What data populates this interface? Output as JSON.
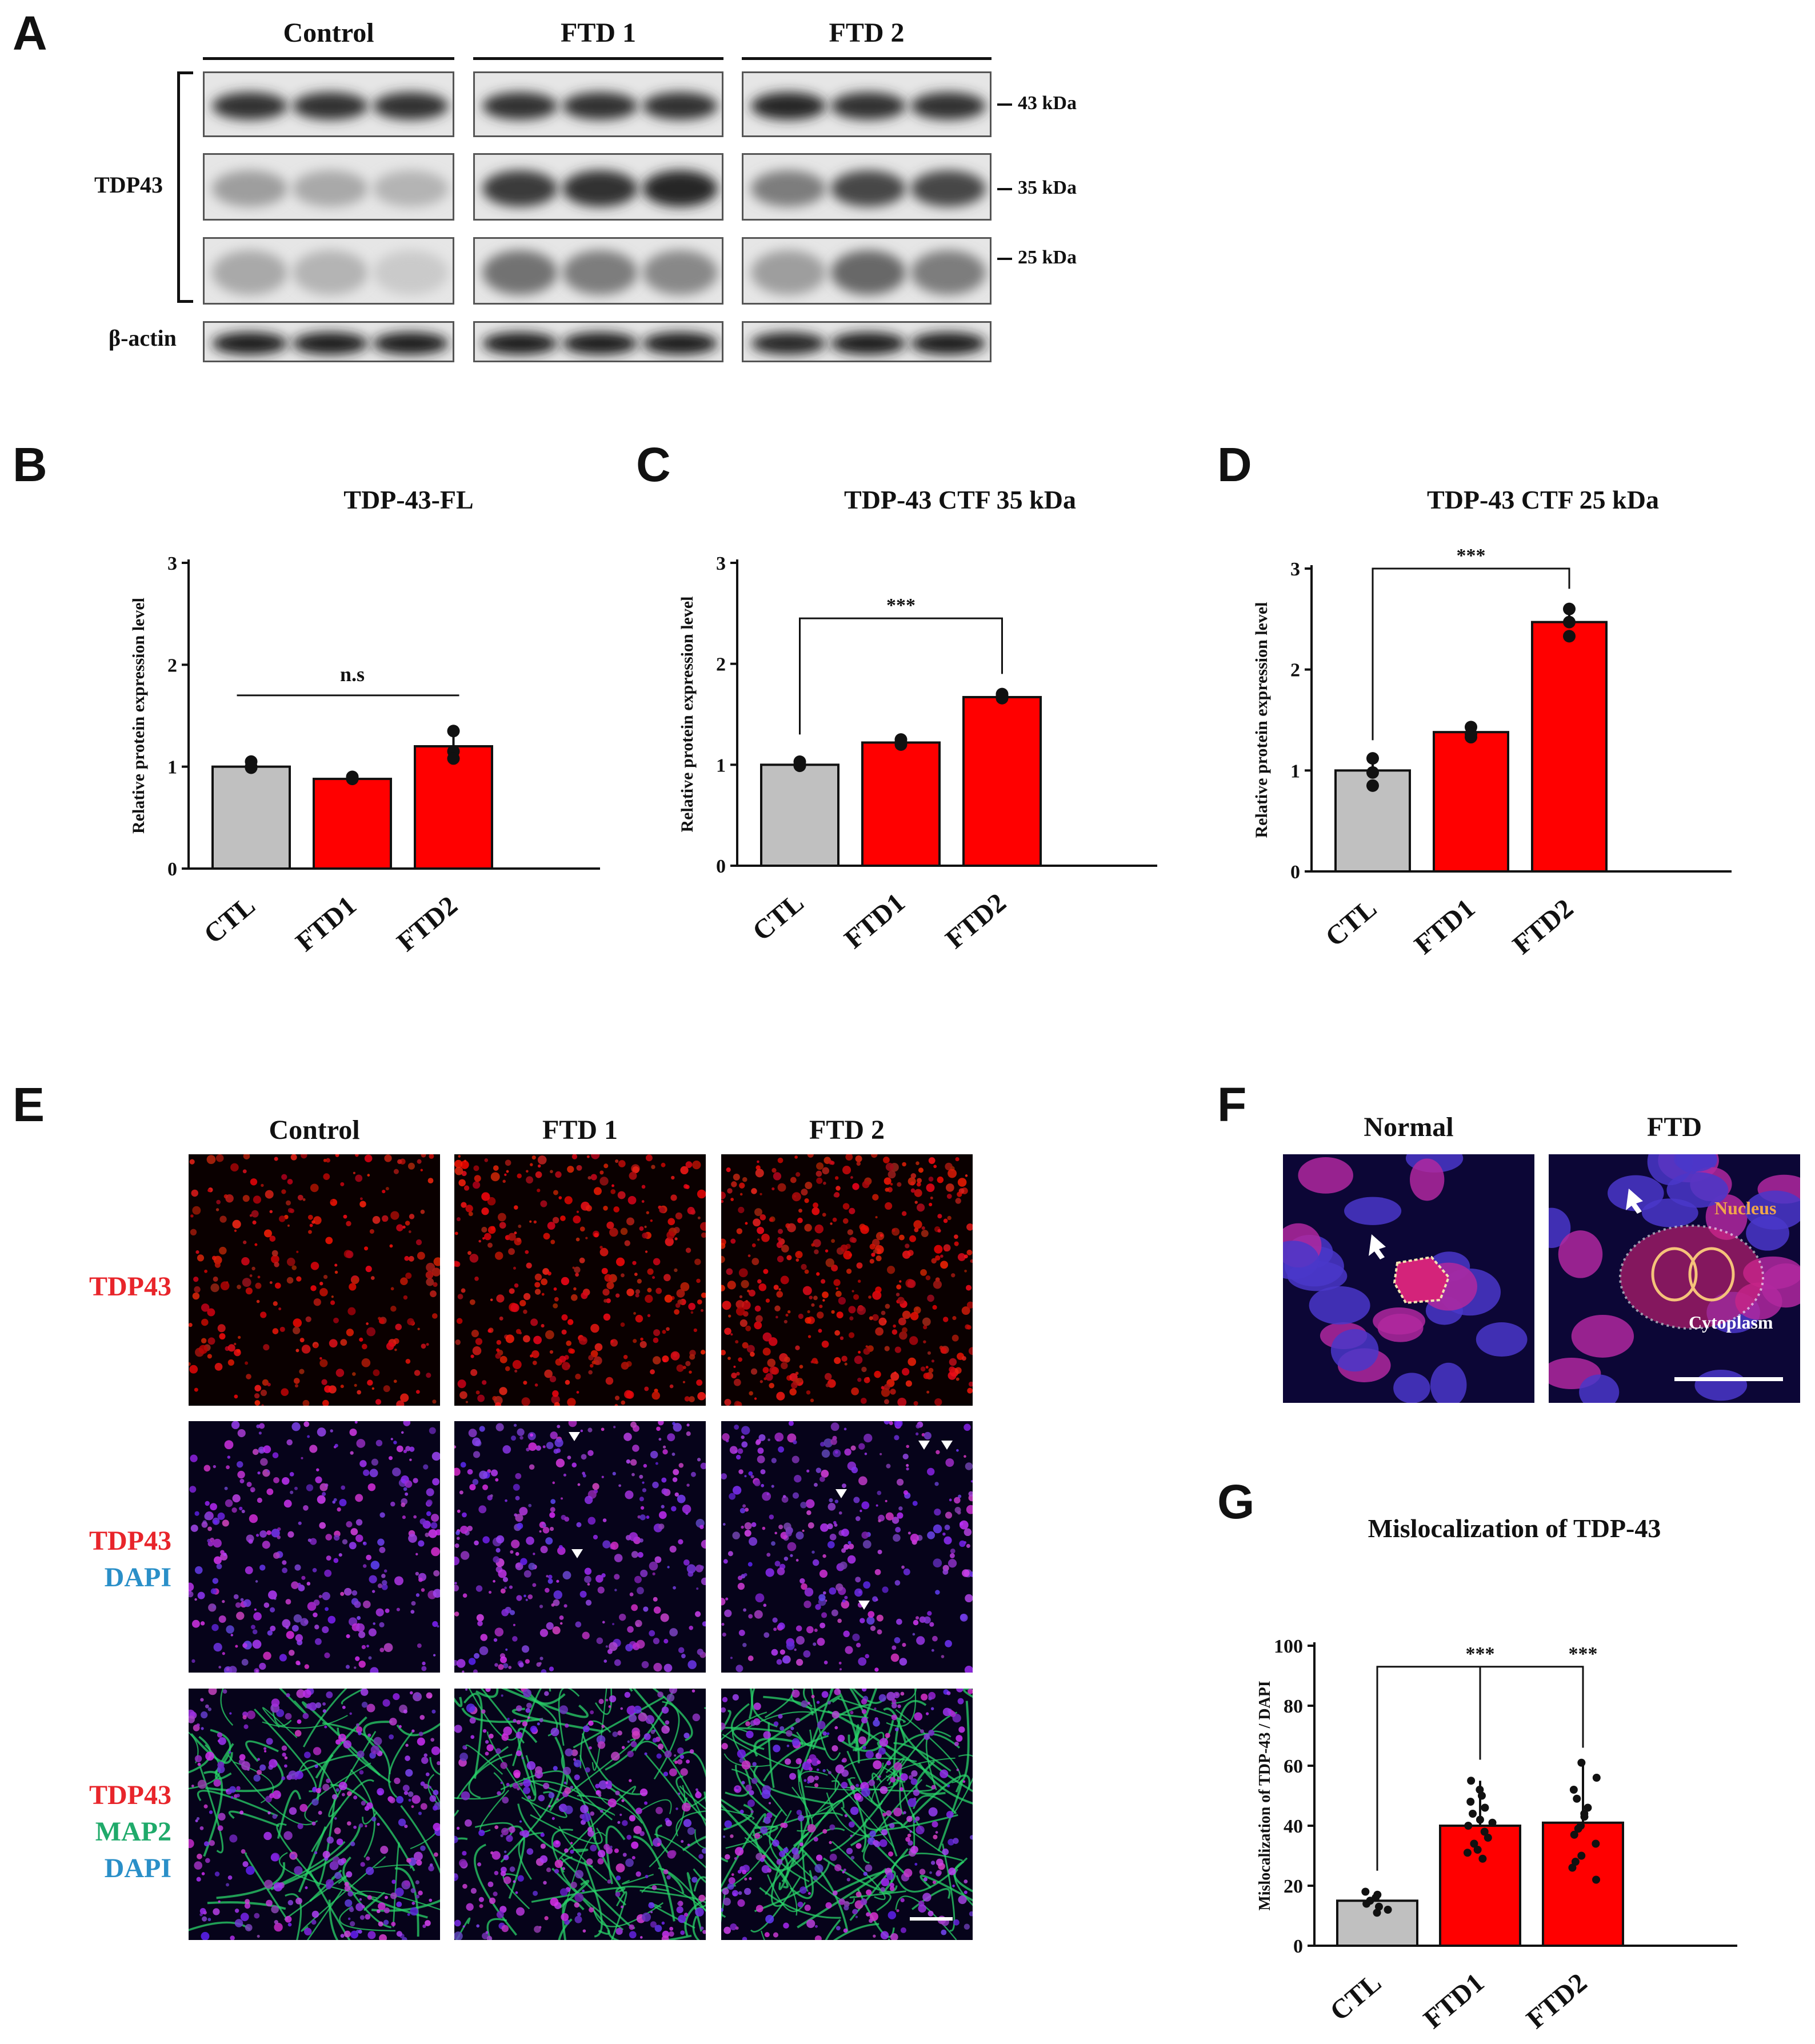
{
  "panels": {
    "A": "A",
    "B": "B",
    "C": "C",
    "D": "D",
    "E": "E",
    "F": "F",
    "G": "G"
  },
  "western": {
    "groups": [
      "Control",
      "FTD 1",
      "FTD 2"
    ],
    "bracket_label": "TDP43",
    "actin_label": "β-actin",
    "markers": [
      "43 kDa",
      "35 kDa",
      "25 kDa"
    ]
  },
  "colors": {
    "control": "#c0c0c0",
    "ftd": "#ff0000",
    "red_text": "#e8252b",
    "green_text": "#1faa6a",
    "blue_text": "#2a8fc8"
  },
  "chart_data": [
    {
      "type": "bar",
      "title": "TDP-43-FL",
      "ylabel": "Relative protein expression level",
      "categories": [
        "CTL",
        "FTD1",
        "FTD2"
      ],
      "values": [
        1.0,
        0.88,
        1.2
      ],
      "points": [
        [
          1.05,
          0.99,
          1.0
        ],
        [
          0.9,
          0.89,
          0.88
        ],
        [
          1.35,
          1.15,
          1.08
        ]
      ],
      "ylim": [
        0,
        3
      ],
      "yticks": [
        "0",
        "1",
        "2",
        "3"
      ],
      "significance": {
        "label": "n.s",
        "from": "CTL",
        "to": "FTD2"
      }
    },
    {
      "type": "bar",
      "title": "TDP-43 CTF 35 kDa",
      "ylabel": "Relative protein expression level",
      "categories": [
        "CTL",
        "FTD1",
        "FTD2"
      ],
      "values": [
        1.0,
        1.22,
        1.67
      ],
      "points": [
        [
          1.03,
          0.99,
          1.0
        ],
        [
          1.25,
          1.2,
          1.22
        ],
        [
          1.7,
          1.68,
          1.66
        ]
      ],
      "ylim": [
        0,
        3
      ],
      "yticks": [
        "0",
        "1",
        "2",
        "3"
      ],
      "significance": {
        "label": "***",
        "from": "CTL",
        "to": "FTD2"
      }
    },
    {
      "type": "bar",
      "title": "TDP-43 CTF 25 kDa",
      "ylabel": "Relative protein expression level",
      "categories": [
        "CTL",
        "FTD1",
        "FTD2"
      ],
      "values": [
        1.0,
        1.38,
        2.47
      ],
      "points": [
        [
          1.12,
          0.98,
          0.85
        ],
        [
          1.43,
          1.36,
          1.33
        ],
        [
          2.6,
          2.47,
          2.33
        ]
      ],
      "ylim": [
        0,
        3
      ],
      "yticks": [
        "0",
        "1",
        "2",
        "3"
      ],
      "significance": {
        "label": "***",
        "from": "CTL",
        "to": "FTD2"
      }
    },
    {
      "type": "bar",
      "title": "Mislocalization of TDP-43",
      "ylabel": "Mislocalization of TDP-43 / DAPI",
      "categories": [
        "CTL",
        "FTD1",
        "FTD2"
      ],
      "values": [
        15,
        40,
        41
      ],
      "points": [
        [
          11,
          13,
          14,
          15,
          16,
          17,
          18,
          12
        ],
        [
          29,
          32,
          34,
          36,
          38,
          40,
          42,
          44,
          46,
          48,
          50,
          52,
          55,
          31,
          41
        ],
        [
          22,
          26,
          30,
          34,
          37,
          40,
          43,
          46,
          49,
          52,
          56,
          61,
          28,
          44,
          39
        ]
      ],
      "ylim": [
        0,
        100
      ],
      "yticks": [
        "0",
        "20",
        "40",
        "60",
        "80",
        "100"
      ],
      "significance": {
        "label": "***",
        "label2": "***",
        "from": "CTL",
        "to": [
          "FTD1",
          "FTD2"
        ]
      }
    }
  ],
  "if_panel": {
    "columns": [
      "Control",
      "FTD 1",
      "FTD 2"
    ],
    "rows": [
      [
        "TDP43"
      ],
      [
        "TDP43",
        "DAPI"
      ],
      [
        "TDP43",
        "MAP2",
        "DAPI"
      ]
    ]
  },
  "zoom_panel": {
    "columns": [
      "Normal",
      "FTD"
    ],
    "nucleus_label": "Nucleus",
    "cytoplasm_label": "Cytoplasm"
  }
}
